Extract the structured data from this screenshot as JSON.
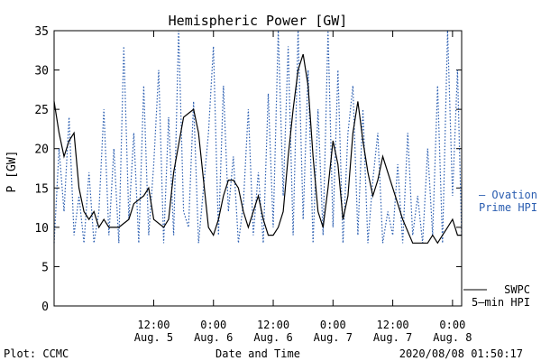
{
  "chart_data": {
    "type": "line",
    "title": "Hemispheric Power [GW]",
    "ylabel": "P [GW]",
    "xlabel": "Date and Time",
    "ylim": [
      0,
      35
    ],
    "xlim": [
      "2020-08-04T16:00",
      "2020-08-08T01:50"
    ],
    "yticks": [
      "0",
      "5",
      "10",
      "15",
      "20",
      "25",
      "30",
      "35"
    ],
    "xticks": [
      {
        "time": "12:00",
        "date": "Aug. 5",
        "at": "2020-08-05T12:00"
      },
      {
        "time": "0:00",
        "date": "Aug. 6",
        "at": "2020-08-06T00:00"
      },
      {
        "time": "12:00",
        "date": "Aug. 6",
        "at": "2020-08-06T12:00"
      },
      {
        "time": "0:00",
        "date": "Aug. 7",
        "at": "2020-08-07T00:00"
      },
      {
        "time": "12:00",
        "date": "Aug. 7",
        "at": "2020-08-07T12:00"
      },
      {
        "time": "0:00",
        "date": "Aug. 8",
        "at": "2020-08-08T00:00"
      }
    ],
    "series": [
      {
        "name": "SWPC 5-min HPI",
        "style": "solid",
        "color": "#000000",
        "x": [
          "2020-08-04T16:00",
          "2020-08-04T17:00",
          "2020-08-04T18:00",
          "2020-08-04T19:00",
          "2020-08-04T20:00",
          "2020-08-04T21:00",
          "2020-08-04T22:00",
          "2020-08-04T23:00",
          "2020-08-05T00:00",
          "2020-08-05T01:00",
          "2020-08-05T02:00",
          "2020-08-05T03:00",
          "2020-08-05T05:00",
          "2020-08-05T07:00",
          "2020-08-05T08:00",
          "2020-08-05T10:00",
          "2020-08-05T11:00",
          "2020-08-05T12:00",
          "2020-08-05T14:00",
          "2020-08-05T15:00",
          "2020-08-05T16:00",
          "2020-08-05T18:00",
          "2020-08-05T20:00",
          "2020-08-05T21:00",
          "2020-08-05T22:00",
          "2020-08-05T23:00",
          "2020-08-06T00:00",
          "2020-08-06T01:00",
          "2020-08-06T02:00",
          "2020-08-06T03:00",
          "2020-08-06T04:00",
          "2020-08-06T05:00",
          "2020-08-06T06:00",
          "2020-08-06T07:00",
          "2020-08-06T08:00",
          "2020-08-06T09:00",
          "2020-08-06T10:00",
          "2020-08-06T11:00",
          "2020-08-06T12:00",
          "2020-08-06T13:00",
          "2020-08-06T14:00",
          "2020-08-06T15:00",
          "2020-08-06T16:00",
          "2020-08-06T17:00",
          "2020-08-06T18:00",
          "2020-08-06T19:00",
          "2020-08-06T20:00",
          "2020-08-06T21:00",
          "2020-08-06T22:00",
          "2020-08-06T23:00",
          "2020-08-07T00:00",
          "2020-08-07T01:00",
          "2020-08-07T02:00",
          "2020-08-07T03:00",
          "2020-08-07T04:00",
          "2020-08-07T05:00",
          "2020-08-07T06:00",
          "2020-08-07T07:00",
          "2020-08-07T08:00",
          "2020-08-07T09:00",
          "2020-08-07T10:00",
          "2020-08-07T12:00",
          "2020-08-07T14:00",
          "2020-08-07T16:00",
          "2020-08-07T17:00",
          "2020-08-07T18:00",
          "2020-08-07T19:00",
          "2020-08-07T20:00",
          "2020-08-07T21:00",
          "2020-08-07T22:00",
          "2020-08-07T23:00",
          "2020-08-08T00:00",
          "2020-08-08T01:00",
          "2020-08-08T01:50"
        ],
        "y": [
          26,
          22,
          19,
          21,
          22,
          15,
          12,
          11,
          12,
          10,
          11,
          10,
          10,
          11,
          13,
          14,
          15,
          11,
          10,
          11,
          17,
          24,
          25,
          22,
          16,
          10,
          9,
          11,
          14,
          16,
          16,
          15,
          12,
          10,
          12,
          14,
          11,
          9,
          9,
          10,
          12,
          19,
          25,
          30,
          32,
          28,
          19,
          12,
          10,
          15,
          21,
          18,
          11,
          14,
          22,
          26,
          21,
          17,
          14,
          16,
          19,
          15,
          11,
          8,
          8,
          8,
          8,
          9,
          8,
          9,
          10,
          11,
          9,
          9
        ]
      },
      {
        "name": "Ovation Prime HPI",
        "style": "dotted",
        "color": "#2a5db0",
        "x": [
          "2020-08-04T16:00",
          "2020-08-04T17:00",
          "2020-08-04T18:00",
          "2020-08-04T19:00",
          "2020-08-04T20:00",
          "2020-08-04T21:00",
          "2020-08-04T22:00",
          "2020-08-04T23:00",
          "2020-08-05T00:00",
          "2020-08-05T01:00",
          "2020-08-05T02:00",
          "2020-08-05T03:00",
          "2020-08-05T04:00",
          "2020-08-05T05:00",
          "2020-08-05T06:00",
          "2020-08-05T07:00",
          "2020-08-05T08:00",
          "2020-08-05T09:00",
          "2020-08-05T10:00",
          "2020-08-05T11:00",
          "2020-08-05T12:00",
          "2020-08-05T13:00",
          "2020-08-05T14:00",
          "2020-08-05T15:00",
          "2020-08-05T16:00",
          "2020-08-05T17:00",
          "2020-08-05T18:00",
          "2020-08-05T19:00",
          "2020-08-05T20:00",
          "2020-08-05T21:00",
          "2020-08-05T22:00",
          "2020-08-05T23:00",
          "2020-08-06T00:00",
          "2020-08-06T01:00",
          "2020-08-06T02:00",
          "2020-08-06T03:00",
          "2020-08-06T04:00",
          "2020-08-06T05:00",
          "2020-08-06T06:00",
          "2020-08-06T07:00",
          "2020-08-06T08:00",
          "2020-08-06T09:00",
          "2020-08-06T10:00",
          "2020-08-06T11:00",
          "2020-08-06T12:00",
          "2020-08-06T13:00",
          "2020-08-06T14:00",
          "2020-08-06T15:00",
          "2020-08-06T16:00",
          "2020-08-06T17:00",
          "2020-08-06T18:00",
          "2020-08-06T19:00",
          "2020-08-06T20:00",
          "2020-08-06T21:00",
          "2020-08-06T22:00",
          "2020-08-06T23:00",
          "2020-08-07T00:00",
          "2020-08-07T01:00",
          "2020-08-07T02:00",
          "2020-08-07T03:00",
          "2020-08-07T04:00",
          "2020-08-07T05:00",
          "2020-08-07T06:00",
          "2020-08-07T07:00",
          "2020-08-07T08:00",
          "2020-08-07T09:00",
          "2020-08-07T10:00",
          "2020-08-07T11:00",
          "2020-08-07T12:00",
          "2020-08-07T13:00",
          "2020-08-07T14:00",
          "2020-08-07T15:00",
          "2020-08-07T16:00",
          "2020-08-07T17:00",
          "2020-08-07T18:00",
          "2020-08-07T19:00",
          "2020-08-07T20:00",
          "2020-08-07T21:00",
          "2020-08-07T22:00",
          "2020-08-07T23:00",
          "2020-08-08T00:00",
          "2020-08-08T01:00",
          "2020-08-08T01:50"
        ],
        "y": [
          8,
          20,
          12,
          24,
          9,
          14,
          8,
          17,
          8,
          12,
          25,
          9,
          20,
          8,
          33,
          11,
          22,
          8,
          28,
          9,
          18,
          30,
          8,
          24,
          9,
          35,
          12,
          10,
          26,
          8,
          15,
          22,
          33,
          9,
          28,
          12,
          19,
          8,
          13,
          25,
          9,
          17,
          8,
          27,
          10,
          35,
          14,
          33,
          9,
          35,
          11,
          30,
          8,
          25,
          9,
          35,
          10,
          30,
          8,
          22,
          28,
          9,
          25,
          8,
          16,
          22,
          8,
          12,
          9,
          18,
          8,
          22,
          9,
          14,
          8,
          20,
          9,
          28,
          8,
          35,
          14,
          30,
          9
        ]
      }
    ],
    "legend": [
      {
        "line1": "— Ovation",
        "line2": "Prime HPI",
        "color": "#2a5db0"
      },
      {
        "line1": "SWPC",
        "line2": "5—min HPI",
        "color": "#000000"
      }
    ],
    "legend_position": "right",
    "grid": false
  },
  "footer": {
    "left": "Plot: CCMC",
    "center": "Date and Time",
    "right": "2020/08/08 01:50:17"
  }
}
